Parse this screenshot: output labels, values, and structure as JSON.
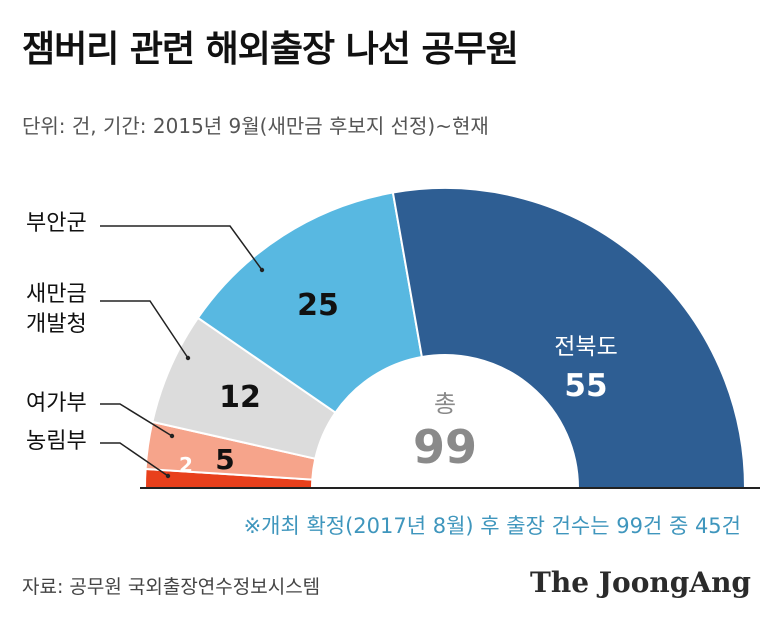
{
  "chart_data": {
    "type": "pie",
    "title": "잼버리 관련 해외출장 나선 공무원",
    "subtitle": "단위: 건, 기간: 2015년 9월(새만금 후보지 선정)~현재",
    "center_label": "총",
    "total": 99,
    "slices": [
      {
        "label": "농림부",
        "value": 2,
        "color": "#e8401c"
      },
      {
        "label": "여가부",
        "value": 5,
        "color": "#f6a48b"
      },
      {
        "label": "새만금 개발청",
        "label_lines": [
          "새만금",
          "개발청"
        ],
        "value": 12,
        "color": "#dcdcdc"
      },
      {
        "label": "부안군",
        "value": 25,
        "color": "#58b8e1"
      },
      {
        "label": "전북도",
        "value": 55,
        "color": "#2e5e93"
      }
    ],
    "note": "※개최 확정(2017년 8월) 후 출장 건수는 99건 중 45건"
  },
  "footer": {
    "source": "자료: 공무원 국외출장연수정보시스템",
    "brand": "The JoongAng"
  }
}
